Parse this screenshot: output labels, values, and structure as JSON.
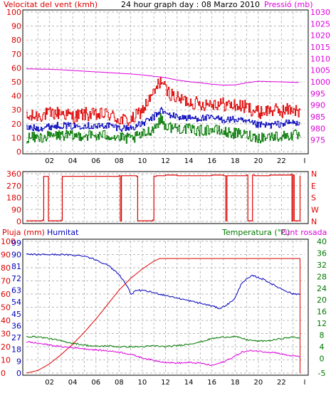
{
  "colors": {
    "wind": "#dd0000",
    "pressure": "#dd00dd",
    "blue": "#0000bb",
    "green": "#007700",
    "grid": "#b8b8b8",
    "frame": "#000000"
  },
  "header": {
    "wind_label": "Velocitat del vent (kmh)",
    "title": "24 hour graph day : 08 Marzo 2010",
    "pressure_label": "Pressió (mb)"
  },
  "hour_ticks": [
    "02",
    "04",
    "06",
    "08",
    "10",
    "12",
    "14",
    "16",
    "18",
    "20",
    "22",
    "I"
  ],
  "panel_labels": {
    "rain": "Pluja (mm)",
    "humidity": "Humitat",
    "temperature": "Temperatura (°C)",
    "dewpoint": "Punt rosada"
  },
  "chart_data": [
    {
      "type": "line",
      "id": "wind_pressure",
      "xlim": [
        0,
        24
      ],
      "y_left": {
        "label": "Velocitat del vent (kmh)",
        "lim": [
          0,
          100
        ],
        "ticks": [
          0,
          10,
          20,
          30,
          40,
          50,
          60,
          70,
          80,
          90,
          100
        ]
      },
      "y_right": {
        "label": "Pressió (mb)",
        "lim": [
          970,
          1030
        ],
        "ticks": [
          975,
          980,
          985,
          990,
          995,
          1000,
          1005,
          1010,
          1015,
          1020,
          1025,
          1030
        ]
      },
      "series": [
        {
          "axis": "left",
          "color": "#dd0000",
          "x": [
            0,
            1,
            2,
            3,
            4,
            5,
            6,
            7,
            8,
            9,
            10,
            11,
            11.6,
            12,
            13,
            14,
            15,
            16,
            17,
            18,
            19,
            20,
            21,
            22,
            23,
            23.6
          ],
          "y": [
            24,
            26,
            27,
            28,
            25,
            27,
            26,
            27,
            23,
            22,
            30,
            42,
            52,
            44,
            38,
            36,
            34,
            35,
            34,
            33,
            32,
            28,
            30,
            29,
            31,
            27
          ]
        },
        {
          "axis": "left",
          "color": "#0000bb",
          "x": [
            0,
            1,
            2,
            3,
            4,
            5,
            6,
            7,
            8,
            9,
            10,
            11,
            11.6,
            12,
            13,
            14,
            15,
            16,
            17,
            18,
            19,
            20,
            21,
            22,
            23,
            23.6
          ],
          "y": [
            17,
            17,
            18,
            19,
            18,
            19,
            18,
            19,
            17,
            17,
            20,
            25,
            30,
            27,
            25,
            24,
            24,
            24,
            23,
            23,
            21,
            19,
            19,
            20,
            21,
            19
          ]
        },
        {
          "axis": "left",
          "color": "#007700",
          "x": [
            0,
            1,
            2,
            3,
            4,
            5,
            6,
            7,
            8,
            9,
            10,
            11,
            11.6,
            12,
            13,
            14,
            15,
            16,
            17,
            18,
            19,
            20,
            21,
            22,
            23,
            23.6
          ],
          "y": [
            10,
            10,
            11,
            12,
            11,
            12,
            11,
            12,
            10,
            9,
            12,
            17,
            24,
            18,
            17,
            16,
            15,
            16,
            14,
            13,
            12,
            10,
            11,
            11,
            12,
            11
          ]
        },
        {
          "axis": "right",
          "color": "#dd00dd",
          "x": [
            0,
            1,
            2,
            3,
            4,
            5,
            6,
            7,
            8,
            9,
            10,
            11,
            12,
            13,
            14,
            15,
            16,
            17,
            18,
            19,
            20,
            21,
            22,
            23,
            23.6
          ],
          "y": [
            1005.6,
            1005.5,
            1005.4,
            1005.2,
            1004.9,
            1004.6,
            1004.3,
            1004.0,
            1003.7,
            1003.4,
            1003.0,
            1002.4,
            1001.8,
            1000.8,
            1000.1,
            999.6,
            999.0,
            998.6,
            998.7,
            999.6,
            1000.3,
            1000.1,
            1000.0,
            999.8,
            999.8
          ]
        }
      ]
    },
    {
      "type": "line",
      "id": "wind_direction",
      "xlim": [
        0,
        24
      ],
      "y_left": {
        "lim": [
          0,
          360
        ],
        "ticks": [
          0,
          90,
          180,
          270,
          360
        ]
      },
      "y_right": {
        "ticks": [
          "N",
          "W",
          "S",
          "E",
          "N"
        ]
      },
      "series": [
        {
          "color": "#dd0000",
          "x": [
            0,
            1.4,
            1.5,
            1.8,
            1.9,
            3.0,
            3.1,
            8.0,
            8.1,
            8.2,
            9.5,
            9.6,
            10.9,
            11.0,
            11.2,
            12.0,
            13.0,
            16.0,
            17.0,
            17.2,
            17.3,
            19.0,
            19.1,
            19.5,
            19.7,
            21.0,
            22.8,
            22.9,
            23.0,
            23.1,
            23.6
          ],
          "y": [
            5,
            10,
            340,
            340,
            5,
            10,
            340,
            345,
            5,
            345,
            340,
            5,
            10,
            340,
            345,
            350,
            345,
            350,
            345,
            5,
            345,
            350,
            5,
            350,
            345,
            350,
            355,
            5,
            350,
            5,
            345
          ]
        }
      ]
    },
    {
      "type": "line",
      "id": "rain_humidity_temperature",
      "xlim": [
        0,
        24
      ],
      "y_left_outer": {
        "label": "Pluja (mm)",
        "lim": [
          0,
          100
        ],
        "ticks": [
          0,
          10,
          20,
          30,
          40,
          50,
          60,
          70,
          80,
          90,
          100
        ]
      },
      "y_left_inner": {
        "label": "Humitat",
        "lim": [
          0,
          100
        ],
        "ticks": [
          0,
          9,
          18,
          27,
          36,
          45,
          54,
          63,
          72,
          81,
          90,
          99
        ]
      },
      "y_right": {
        "label": "Temperatura (°C)",
        "lim": [
          -5,
          40
        ],
        "ticks": [
          -5,
          0,
          4,
          8,
          12,
          16,
          20,
          24,
          28,
          32,
          36,
          40
        ]
      },
      "series": [
        {
          "name": "Humitat",
          "axis": "humidity",
          "color": "#0000bb",
          "x": [
            0,
            3,
            5,
            6,
            7,
            8,
            8.7,
            9,
            9.6,
            10.5,
            11.5,
            13,
            14,
            15,
            16,
            16.7,
            17.5,
            18,
            18.6,
            19.5,
            20.5,
            21.5,
            22,
            23,
            23.6
          ],
          "y": [
            90,
            90,
            89,
            86,
            82,
            75,
            66,
            60,
            63,
            62,
            60,
            57,
            55,
            53,
            51,
            49,
            53,
            57,
            69,
            74,
            71,
            66,
            64,
            60,
            60
          ]
        },
        {
          "name": "Pluja (mm)",
          "axis": "rain",
          "color": "#dd0000",
          "x": [
            0,
            1,
            2,
            3,
            4,
            5,
            6,
            7,
            8,
            9,
            10,
            11,
            11.5,
            23.6
          ],
          "y": [
            0,
            2,
            7,
            14,
            22,
            31,
            41,
            52,
            63,
            72,
            79,
            85,
            87,
            87
          ]
        },
        {
          "name": "Temperatura (°C)",
          "axis": "right",
          "color": "#007700",
          "x": [
            0,
            1,
            2,
            3,
            4,
            5,
            6,
            7,
            8,
            9,
            10,
            11,
            12,
            13,
            14,
            15,
            16,
            17,
            18,
            19,
            20,
            21,
            22,
            23,
            23.6
          ],
          "y": [
            7.5,
            7.4,
            6.8,
            6.0,
            5.2,
            4.6,
            4.1,
            4.3,
            4.0,
            4.0,
            4.0,
            4.3,
            4.0,
            4.4,
            4.9,
            5.6,
            6.8,
            7.3,
            7.5,
            6.4,
            5.9,
            6.1,
            6.8,
            7.3,
            7.0
          ]
        },
        {
          "name": "Punt rosada",
          "axis": "right",
          "color": "#dd00dd",
          "x": [
            0,
            1,
            2,
            3,
            4,
            5,
            6,
            7,
            8,
            9,
            10,
            11,
            12,
            13,
            14,
            15,
            16,
            17,
            18,
            18.6,
            19.5,
            20.5,
            21.5,
            22.5,
            23.6
          ],
          "y": [
            5.7,
            5.2,
            4.6,
            4.0,
            3.7,
            3.3,
            2.9,
            2.6,
            2.2,
            1.4,
            0.2,
            -0.7,
            -1.3,
            -1.6,
            -1.4,
            -1.6,
            -2.4,
            -1.2,
            0.8,
            2.2,
            2.7,
            2.3,
            2.0,
            1.1,
            0.6
          ]
        }
      ]
    }
  ]
}
